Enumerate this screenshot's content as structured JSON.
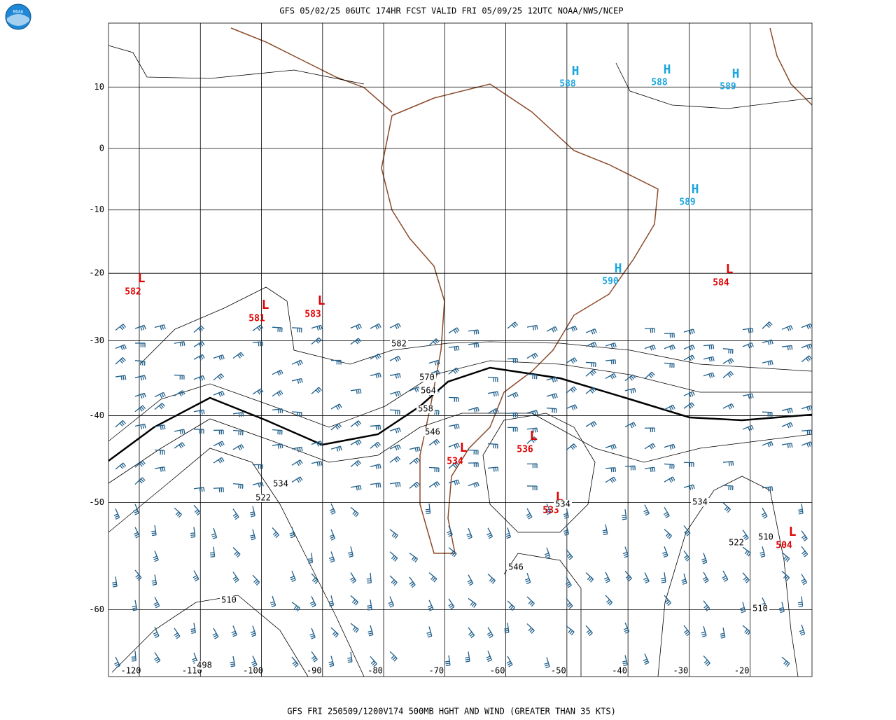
{
  "header": {
    "title": "GFS 05/02/25 06UTC 174HR FCST VALID FRI 05/09/25 12UTC NOAA/NWS/NCEP",
    "logo": "NOAA"
  },
  "footer": "GFS FRI 250509/1200V174 500MB HGHT AND WIND (GREATER THAN 35 KTS)",
  "lat_labels": [
    10,
    0,
    -10,
    -20,
    -30,
    -40,
    -50,
    -60
  ],
  "lon_labels": [
    -120,
    -110,
    -100,
    -90,
    -80,
    -70,
    -60,
    -50,
    -40,
    -30,
    -20
  ],
  "highs": [
    {
      "letter": "H",
      "value": 588
    },
    {
      "letter": "H",
      "value": 588
    },
    {
      "letter": "H",
      "value": 589
    },
    {
      "letter": "H",
      "value": 589
    },
    {
      "letter": "H",
      "value": 590
    }
  ],
  "lows": [
    {
      "letter": "L",
      "value": 582
    },
    {
      "letter": "L",
      "value": 581
    },
    {
      "letter": "L",
      "value": 583
    },
    {
      "letter": "L",
      "value": 534
    },
    {
      "letter": "L",
      "value": 536
    },
    {
      "letter": "L",
      "value": 533
    },
    {
      "letter": "L",
      "value": 584
    },
    {
      "letter": "L",
      "value": 504
    }
  ],
  "contour_labels": [
    582,
    570,
    564,
    558,
    546,
    534,
    522,
    534,
    534,
    522,
    510,
    546,
    510,
    510,
    498
  ]
}
